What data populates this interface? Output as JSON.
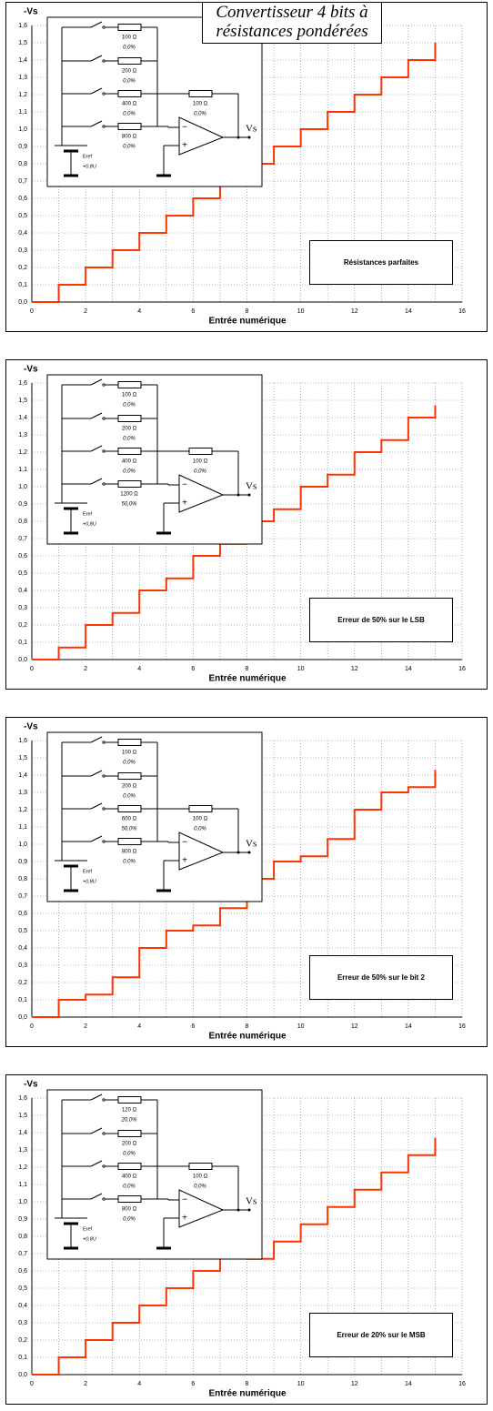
{
  "chart_data": [
    {
      "type": "step",
      "title": "Convertisseur 4 bits à résistances pondérées",
      "ylabel": "-Vs",
      "xlabel": "Entrée numérique",
      "annotation": "Résistances parfaites",
      "x": [
        0,
        1,
        2,
        3,
        4,
        5,
        6,
        7,
        8,
        9,
        10,
        11,
        12,
        13,
        14,
        15
      ],
      "series": [
        {
          "color": "#ff3300",
          "values": [
            0,
            0.1,
            0.2,
            0.3,
            0.4,
            0.5,
            0.6,
            0.7,
            0.8,
            0.9,
            1.0,
            1.1,
            1.2,
            1.3,
            1.4,
            1.5
          ]
        }
      ],
      "xlim": [
        0,
        16
      ],
      "xticks": [
        0,
        2,
        4,
        6,
        8,
        10,
        12,
        14,
        16
      ],
      "minor_xticks": [
        1,
        3,
        5,
        7,
        9,
        11,
        13,
        15
      ],
      "ylim": [
        0,
        1.6
      ],
      "yticks": [
        {
          "value": 0,
          "label": "0,0"
        },
        {
          "value": 0.1,
          "label": "0,1"
        },
        {
          "value": 0.2,
          "label": "0,2"
        },
        {
          "value": 0.3,
          "label": "0,3"
        },
        {
          "value": 0.4,
          "label": "0,4"
        },
        {
          "value": 0.5,
          "label": "0,5"
        },
        {
          "value": 0.6,
          "label": "0,6"
        },
        {
          "value": 0.7,
          "label": "0,7"
        },
        {
          "value": 0.8,
          "label": "0,8"
        },
        {
          "value": 0.9,
          "label": "0,9"
        },
        {
          "value": 1.0,
          "label": "1,0"
        },
        {
          "value": 1.1,
          "label": "1,1"
        },
        {
          "value": 1.2,
          "label": "1,2"
        },
        {
          "value": 1.3,
          "label": "1,3"
        },
        {
          "value": 1.4,
          "label": "1,4"
        },
        {
          "value": 1.5,
          "label": "1,5"
        },
        {
          "value": 1.6,
          "label": "1,6"
        }
      ],
      "grid": true,
      "circuit": {
        "resistors": [
          {
            "value": "100 Ω",
            "error": "0,0%"
          },
          {
            "value": "200 Ω",
            "error": "0,0%"
          },
          {
            "value": "400 Ω",
            "error": "0,0%"
          },
          {
            "value": "800 Ω",
            "error": "0,0%"
          }
        ],
        "feedback": {
          "value": "100 Ω",
          "error": "0,0%"
        },
        "source": "Eref",
        "source_value": "+0,8U",
        "output": "Vs",
        "minus": "−",
        "plus": "+"
      }
    },
    {
      "type": "step",
      "ylabel": "-Vs",
      "xlabel": "Entrée numérique",
      "annotation": "Erreur de 50% sur le LSB",
      "x": [
        0,
        1,
        2,
        3,
        4,
        5,
        6,
        7,
        8,
        9,
        10,
        11,
        12,
        13,
        14,
        15
      ],
      "series": [
        {
          "color": "#ff3300",
          "values": [
            0,
            0.07,
            0.2,
            0.27,
            0.4,
            0.47,
            0.6,
            0.67,
            0.8,
            0.87,
            1.0,
            1.07,
            1.2,
            1.27,
            1.4,
            1.47
          ]
        }
      ],
      "xlim": [
        0,
        16
      ],
      "xticks": [
        0,
        2,
        4,
        6,
        8,
        10,
        12,
        14,
        16
      ],
      "minor_xticks": [
        1,
        3,
        5,
        7,
        9,
        11,
        13,
        15
      ],
      "ylim": [
        0,
        1.6
      ],
      "yticks": [
        {
          "value": 0,
          "label": "0,0"
        },
        {
          "value": 0.1,
          "label": "0,1"
        },
        {
          "value": 0.2,
          "label": "0,2"
        },
        {
          "value": 0.3,
          "label": "0,3"
        },
        {
          "value": 0.4,
          "label": "0,4"
        },
        {
          "value": 0.5,
          "label": "0,5"
        },
        {
          "value": 0.6,
          "label": "0,6"
        },
        {
          "value": 0.7,
          "label": "0,7"
        },
        {
          "value": 0.8,
          "label": "0,8"
        },
        {
          "value": 0.9,
          "label": "0,9"
        },
        {
          "value": 1.0,
          "label": "1,0"
        },
        {
          "value": 1.1,
          "label": "1,1"
        },
        {
          "value": 1.2,
          "label": "1,2"
        },
        {
          "value": 1.3,
          "label": "1,3"
        },
        {
          "value": 1.4,
          "label": "1,4"
        },
        {
          "value": 1.5,
          "label": "1,5"
        },
        {
          "value": 1.6,
          "label": "1,6"
        }
      ],
      "grid": true,
      "circuit": {
        "resistors": [
          {
            "value": "100 Ω",
            "error": "0,0%"
          },
          {
            "value": "200 Ω",
            "error": "0,0%"
          },
          {
            "value": "400 Ω",
            "error": "0,0%"
          },
          {
            "value": "1200 Ω",
            "error": "50,0%"
          }
        ],
        "feedback": {
          "value": "100 Ω",
          "error": "0,0%"
        },
        "source": "Eref",
        "source_value": "+0,8U",
        "output": "Vs",
        "minus": "−",
        "plus": "+"
      }
    },
    {
      "type": "step",
      "ylabel": "-Vs",
      "xlabel": "Entrée numérique",
      "annotation": "Erreur de 50% sur le bit 2",
      "x": [
        0,
        1,
        2,
        3,
        4,
        5,
        6,
        7,
        8,
        9,
        10,
        11,
        12,
        13,
        14,
        15
      ],
      "series": [
        {
          "color": "#ff3300",
          "values": [
            0,
            0.1,
            0.13,
            0.23,
            0.4,
            0.5,
            0.53,
            0.63,
            0.8,
            0.9,
            0.93,
            1.03,
            1.2,
            1.3,
            1.33,
            1.43
          ]
        }
      ],
      "xlim": [
        0,
        16
      ],
      "xticks": [
        0,
        2,
        4,
        6,
        8,
        10,
        12,
        14,
        16
      ],
      "minor_xticks": [
        1,
        3,
        5,
        7,
        9,
        11,
        13,
        15
      ],
      "ylim": [
        0,
        1.6
      ],
      "yticks": [
        {
          "value": 0,
          "label": "0,0"
        },
        {
          "value": 0.1,
          "label": "0,1"
        },
        {
          "value": 0.2,
          "label": "0,2"
        },
        {
          "value": 0.3,
          "label": "0,3"
        },
        {
          "value": 0.4,
          "label": "0,4"
        },
        {
          "value": 0.5,
          "label": "0,5"
        },
        {
          "value": 0.6,
          "label": "0,6"
        },
        {
          "value": 0.7,
          "label": "0,7"
        },
        {
          "value": 0.8,
          "label": "0,8"
        },
        {
          "value": 0.9,
          "label": "0,9"
        },
        {
          "value": 1.0,
          "label": "1,0"
        },
        {
          "value": 1.1,
          "label": "1,1"
        },
        {
          "value": 1.2,
          "label": "1,2"
        },
        {
          "value": 1.3,
          "label": "1,3"
        },
        {
          "value": 1.4,
          "label": "1,4"
        },
        {
          "value": 1.5,
          "label": "1,5"
        },
        {
          "value": 1.6,
          "label": "1,6"
        }
      ],
      "grid": true,
      "circuit": {
        "resistors": [
          {
            "value": "100 Ω",
            "error": "0,0%"
          },
          {
            "value": "200 Ω",
            "error": "0,0%"
          },
          {
            "value": "600 Ω",
            "error": "50,0%"
          },
          {
            "value": "800 Ω",
            "error": "0,0%"
          }
        ],
        "feedback": {
          "value": "100 Ω",
          "error": "0,0%"
        },
        "source": "Eref",
        "source_value": "+0,8U",
        "output": "Vs",
        "minus": "−",
        "plus": "+"
      }
    },
    {
      "type": "step",
      "ylabel": "-Vs",
      "xlabel": "Entrée numérique",
      "annotation": "Erreur de 20% sur le MSB",
      "x": [
        0,
        1,
        2,
        3,
        4,
        5,
        6,
        7,
        8,
        9,
        10,
        11,
        12,
        13,
        14,
        15
      ],
      "series": [
        {
          "color": "#ff3300",
          "values": [
            0,
            0.1,
            0.2,
            0.3,
            0.4,
            0.5,
            0.6,
            0.7,
            0.67,
            0.77,
            0.87,
            0.97,
            1.07,
            1.17,
            1.27,
            1.37
          ]
        }
      ],
      "xlim": [
        0,
        16
      ],
      "xticks": [
        0,
        2,
        4,
        6,
        8,
        10,
        12,
        14,
        16
      ],
      "minor_xticks": [
        1,
        3,
        5,
        7,
        9,
        11,
        13,
        15
      ],
      "ylim": [
        0,
        1.6
      ],
      "yticks": [
        {
          "value": 0,
          "label": "0,0"
        },
        {
          "value": 0.1,
          "label": "0,1"
        },
        {
          "value": 0.2,
          "label": "0,2"
        },
        {
          "value": 0.3,
          "label": "0,3"
        },
        {
          "value": 0.4,
          "label": "0,4"
        },
        {
          "value": 0.5,
          "label": "0,5"
        },
        {
          "value": 0.6,
          "label": "0,6"
        },
        {
          "value": 0.7,
          "label": "0,7"
        },
        {
          "value": 0.8,
          "label": "0,8"
        },
        {
          "value": 0.9,
          "label": "0,9"
        },
        {
          "value": 1.0,
          "label": "1,0"
        },
        {
          "value": 1.1,
          "label": "1,1"
        },
        {
          "value": 1.2,
          "label": "1,2"
        },
        {
          "value": 1.3,
          "label": "1,3"
        },
        {
          "value": 1.4,
          "label": "1,4"
        },
        {
          "value": 1.5,
          "label": "1,5"
        },
        {
          "value": 1.6,
          "label": "1,6"
        }
      ],
      "grid": true,
      "circuit": {
        "resistors": [
          {
            "value": "120 Ω",
            "error": "20,0%"
          },
          {
            "value": "200 Ω",
            "error": "0,0%"
          },
          {
            "value": "400 Ω",
            "error": "0,0%"
          },
          {
            "value": "800 Ω",
            "error": "0,0%"
          }
        ],
        "feedback": {
          "value": "100 Ω",
          "error": "0,0%"
        },
        "source": "Eref",
        "source_value": "+0,8U",
        "output": "Vs",
        "minus": "−",
        "plus": "+"
      }
    }
  ]
}
